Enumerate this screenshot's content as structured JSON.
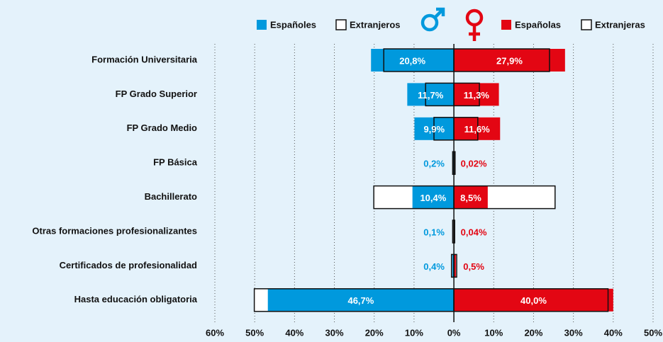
{
  "chart_data": {
    "type": "butterfly-bar",
    "categories": [
      "Formación Universitaria",
      "FP Grado Superior",
      "FP Grado Medio",
      "FP Básica",
      "Bachillerato",
      "Otras formaciones profesionalizantes",
      "Certificados de profesionalidad",
      "Hasta educación obligatoria"
    ],
    "series": [
      {
        "name": "Españoles",
        "color": "#0099dd",
        "side": "left",
        "style": "filled",
        "values": [
          20.8,
          11.7,
          9.9,
          0.2,
          10.4,
          0.1,
          0.4,
          46.7
        ],
        "value_labels": [
          "20,8%",
          "11,7%",
          "9,9%",
          "0,2%",
          "10,4%",
          "0,1%",
          "0,4%",
          "46,7%"
        ]
      },
      {
        "name": "Extranjeros",
        "color": "#111111",
        "side": "left",
        "style": "outline",
        "values": [
          17.6,
          7.1,
          5.0,
          0.3,
          20.1,
          0.3,
          0.6,
          50.1
        ]
      },
      {
        "name": "Españolas",
        "color": "#e30613",
        "side": "right",
        "style": "filled",
        "values": [
          27.9,
          11.3,
          11.6,
          0.02,
          8.5,
          0.04,
          0.5,
          40.0
        ],
        "value_labels": [
          "27,9%",
          "11,3%",
          "11,6%",
          "0,02%",
          "8,5%",
          "0,04%",
          "0,5%",
          "40,0%"
        ]
      },
      {
        "name": "Extranjeras",
        "color": "#111111",
        "side": "right",
        "style": "outline",
        "values": [
          24.0,
          6.4,
          6.0,
          0.3,
          25.4,
          0.2,
          0.7,
          38.7
        ]
      }
    ],
    "xlim": [
      -60,
      50
    ],
    "xticks": [
      {
        "value": -60,
        "label": "60%"
      },
      {
        "value": -50,
        "label": "50%"
      },
      {
        "value": -40,
        "label": "40%"
      },
      {
        "value": -30,
        "label": "30%"
      },
      {
        "value": -20,
        "label": "20%"
      },
      {
        "value": -10,
        "label": "10%"
      },
      {
        "value": 0,
        "label": "0%"
      },
      {
        "value": 10,
        "label": "10%"
      },
      {
        "value": 20,
        "label": "20%"
      },
      {
        "value": 30,
        "label": "30%"
      },
      {
        "value": 40,
        "label": "40%"
      },
      {
        "value": 50,
        "label": "50%"
      }
    ],
    "grid": true
  }
}
